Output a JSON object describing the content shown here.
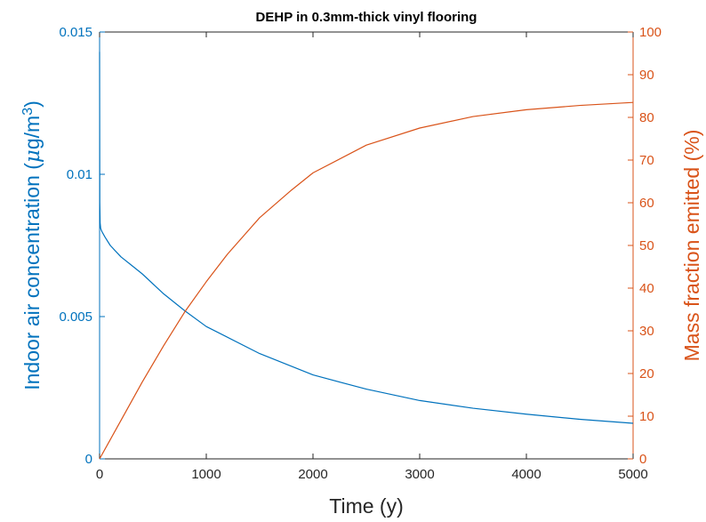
{
  "chart_data": {
    "type": "line",
    "title": "DEHP in 0.3mm-thick vinyl flooring",
    "xlabel": "Time (y)",
    "x_ticks": [
      "0",
      "1000",
      "2000",
      "3000",
      "4000",
      "5000"
    ],
    "xlim": [
      0,
      5000
    ],
    "y_left": {
      "label": "Indoor air concentration (μg/m³)",
      "label_main": "Indoor air concentration (",
      "label_mu": "μ",
      "label_unit": "g/m",
      "label_exp": "3",
      "label_close": ")",
      "ticks": [
        "0",
        "0.005",
        "0.01",
        "0.015"
      ],
      "ylim": [
        0,
        0.015
      ],
      "color": "#0072BD"
    },
    "y_right": {
      "label": "Mass fraction emitted (%)",
      "ticks": [
        "0",
        "10",
        "20",
        "30",
        "40",
        "50",
        "60",
        "70",
        "80",
        "90",
        "100"
      ],
      "ylim": [
        0,
        100
      ],
      "color": "#D95319"
    },
    "grid": false,
    "series": [
      {
        "axis": "left",
        "color": "#0072BD",
        "x": [
          0,
          2,
          5,
          10,
          20,
          50,
          100,
          200,
          300,
          400,
          600,
          800,
          1000,
          1500,
          2000,
          2500,
          3000,
          3500,
          4000,
          4500,
          5000
        ],
        "y": [
          0.0143,
          0.009,
          0.0083,
          0.0081,
          0.008,
          0.0078,
          0.0075,
          0.0071,
          0.0068,
          0.0065,
          0.0058,
          0.0052,
          0.00465,
          0.0037,
          0.00295,
          0.00245,
          0.00205,
          0.00178,
          0.00157,
          0.00139,
          0.00125
        ]
      },
      {
        "axis": "right",
        "color": "#D95319",
        "x": [
          0,
          100,
          200,
          400,
          600,
          800,
          1000,
          1200,
          1500,
          1800,
          2000,
          2500,
          3000,
          3500,
          4000,
          4500,
          5000
        ],
        "y": [
          0,
          4.5,
          9,
          18,
          26.5,
          34.5,
          41.5,
          48,
          56.5,
          63,
          67,
          73.5,
          77.5,
          80.2,
          81.8,
          82.8,
          83.5
        ]
      }
    ]
  }
}
